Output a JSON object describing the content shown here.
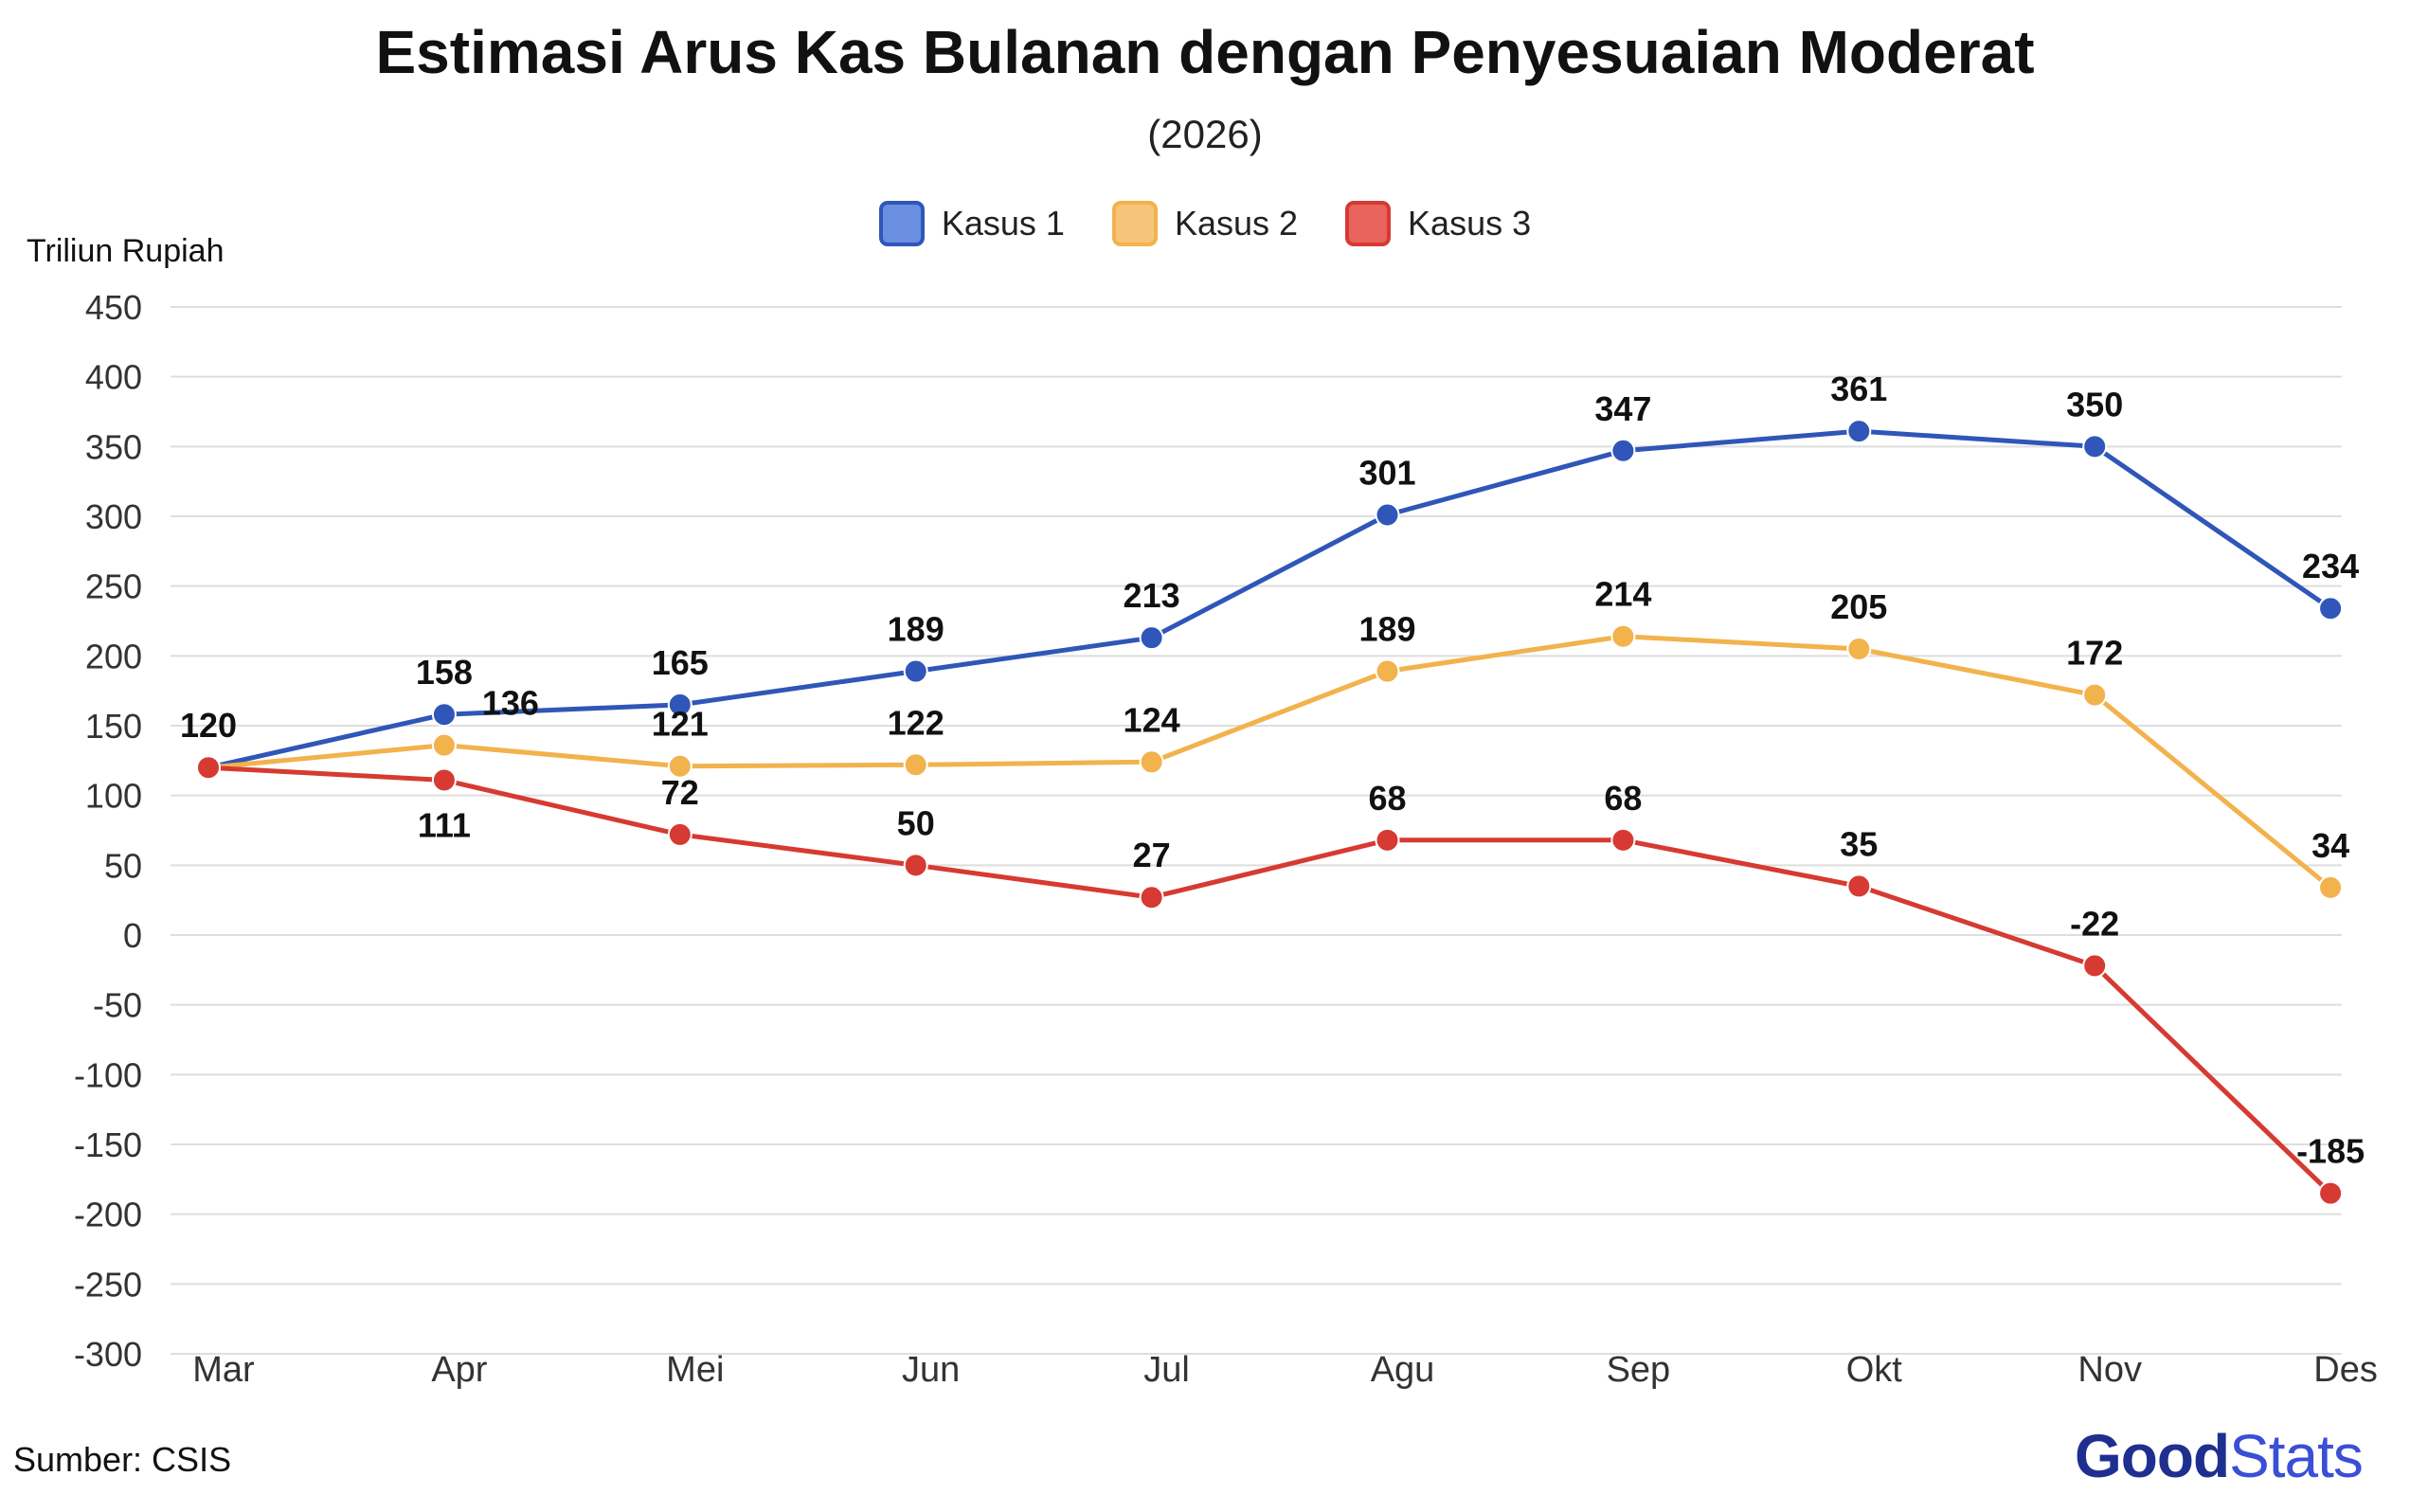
{
  "header": {
    "title": "Estimasi Arus Kas Bulanan dengan Penyesuaian Moderat",
    "subtitle": "(2026)"
  },
  "colors": {
    "kasus1": "#2f56b8",
    "kasus2": "#f2b24c",
    "kasus3": "#d63a32",
    "grid": "#dedede",
    "axis_text": "#333333"
  },
  "chart_data": {
    "type": "line",
    "title": "Estimasi Arus Kas Bulanan dengan Penyesuaian Moderat",
    "subtitle": "(2026)",
    "xlabel": "",
    "ylabel": "Triliun Rupiah",
    "categories": [
      "Mar",
      "Apr",
      "Mei",
      "Jun",
      "Jul",
      "Agu",
      "Sep",
      "Okt",
      "Nov",
      "Des"
    ],
    "y_ticks": [
      450,
      400,
      350,
      300,
      250,
      200,
      150,
      100,
      50,
      0,
      -50,
      -100,
      -150,
      -200,
      -250,
      -300
    ],
    "ylim": [
      -300,
      450
    ],
    "grid": true,
    "legend": "top-center",
    "series": [
      {
        "name": "Kasus 1",
        "color": "#2f56b8",
        "values": [
          120,
          158,
          165,
          189,
          213,
          301,
          347,
          361,
          350,
          234
        ],
        "labels": [
          "120",
          "158",
          "165",
          "189",
          "213",
          "301",
          "347",
          "361",
          "350",
          "234"
        ]
      },
      {
        "name": "Kasus 2",
        "color": "#f2b24c",
        "values": [
          120,
          136,
          121,
          122,
          124,
          189,
          214,
          205,
          172,
          34
        ],
        "labels": [
          "",
          "136",
          "121",
          "122",
          "124",
          "189",
          "214",
          "205",
          "172",
          "34"
        ]
      },
      {
        "name": "Kasus 3",
        "color": "#d63a32",
        "values": [
          120,
          111,
          72,
          50,
          27,
          68,
          68,
          35,
          -22,
          -185
        ],
        "labels": [
          "",
          "111",
          "72",
          "50",
          "27",
          "68",
          "68",
          "35",
          "-22",
          "-185"
        ]
      }
    ]
  },
  "footer": {
    "source": "Sumber: CSIS",
    "brand_part1": "Good",
    "brand_part2": "Stats"
  }
}
